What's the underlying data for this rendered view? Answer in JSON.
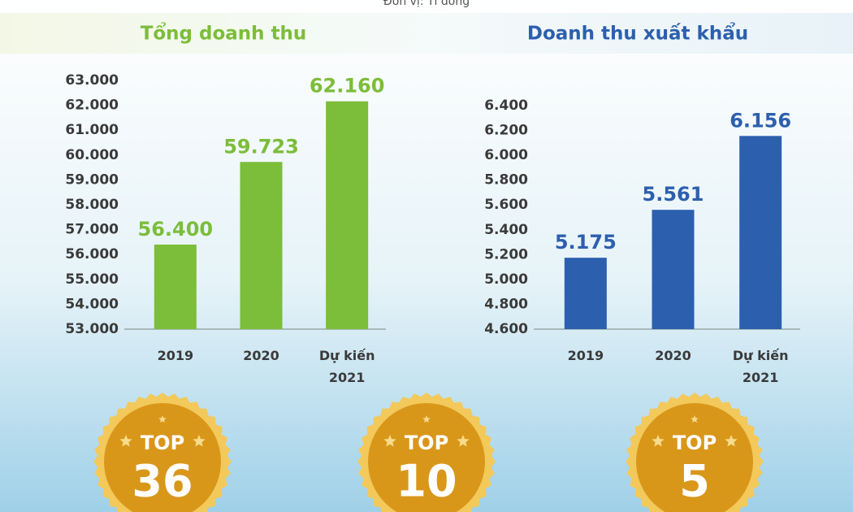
{
  "unit": "Đơn vị: Tỉ đồng",
  "chart_data": [
    {
      "type": "bar",
      "title": "Tổng doanh thu",
      "color": "#7cbd3a",
      "categories": [
        "2019",
        "2020",
        "Dự kiến\n2021"
      ],
      "values": [
        56400,
        59723,
        62160
      ],
      "value_labels": [
        "56.400",
        "59.723",
        "62.160"
      ],
      "ylim": [
        53000,
        63000
      ],
      "yticks": [
        {
          "value": 53000,
          "label": "53.000"
        },
        {
          "value": 54000,
          "label": "54.000"
        },
        {
          "value": 55000,
          "label": "55.000"
        },
        {
          "value": 56000,
          "label": "56.000"
        },
        {
          "value": 57000,
          "label": "57.000"
        },
        {
          "value": 58000,
          "label": "58.000"
        },
        {
          "value": 59000,
          "label": "59.000"
        },
        {
          "value": 60000,
          "label": "60.000"
        },
        {
          "value": 61000,
          "label": "61.000"
        },
        {
          "value": 62000,
          "label": "62.000"
        },
        {
          "value": 63000,
          "label": "63.000"
        }
      ]
    },
    {
      "type": "bar",
      "title": "Doanh thu xuất khẩu",
      "color": "#2c5fae",
      "categories": [
        "2019",
        "2020",
        "Dự kiến\n2021"
      ],
      "values": [
        5175,
        5561,
        6156
      ],
      "value_labels": [
        "5.175",
        "5.561",
        "6.156"
      ],
      "ylim": [
        4600,
        6400
      ],
      "yticks": [
        {
          "value": 4600,
          "label": "4.600"
        },
        {
          "value": 4800,
          "label": "4.800"
        },
        {
          "value": 5000,
          "label": "5.000"
        },
        {
          "value": 5200,
          "label": "5.200"
        },
        {
          "value": 5400,
          "label": "5.400"
        },
        {
          "value": 5600,
          "label": "5.600"
        },
        {
          "value": 5800,
          "label": "5.800"
        },
        {
          "value": 6000,
          "label": "6.000"
        },
        {
          "value": 6200,
          "label": "6.200"
        },
        {
          "value": 6400,
          "label": "6.400"
        }
      ]
    }
  ],
  "badges": [
    {
      "label": "TOP",
      "rank": 36
    },
    {
      "label": "TOP",
      "rank": 10
    },
    {
      "label": "TOP",
      "rank": 5
    }
  ]
}
